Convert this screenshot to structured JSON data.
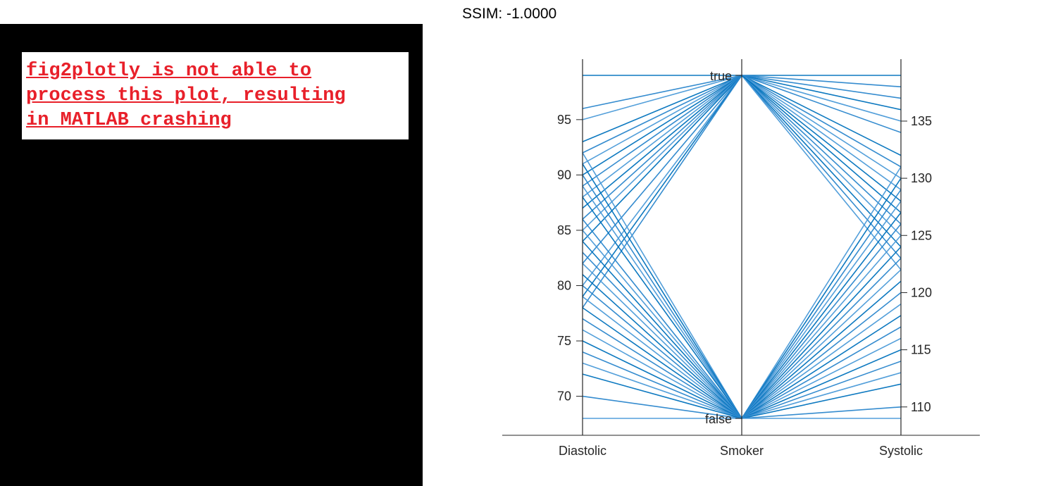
{
  "error_panel": {
    "message": "fig2plotly is not able to\nprocess this plot, resulting\nin MATLAB crashing"
  },
  "ssim_label": "SSIM: -1.0000",
  "colors": {
    "line_colors": [
      "#0072bd",
      "#2a86cc",
      "#4a9ad8"
    ],
    "axis": "#262626",
    "error_text": "#e8202a"
  },
  "chart_data": {
    "type": "parallel-coordinates",
    "axes": [
      {
        "name": "Diastolic",
        "kind": "numeric",
        "range": [
          68,
          99
        ],
        "ticks": [
          70,
          75,
          80,
          85,
          90,
          95
        ],
        "tick_side": "left"
      },
      {
        "name": "Smoker",
        "kind": "categorical",
        "categories": [
          "false",
          "true"
        ],
        "tick_side": "left"
      },
      {
        "name": "Systolic",
        "kind": "numeric",
        "range": [
          109,
          139
        ],
        "ticks": [
          110,
          115,
          120,
          125,
          130,
          135
        ],
        "tick_side": "right"
      }
    ],
    "observations": [
      [
        99,
        "true",
        139
      ],
      [
        96,
        "true",
        138
      ],
      [
        95,
        "true",
        135
      ],
      [
        93,
        "true",
        132
      ],
      [
        92,
        "true",
        131
      ],
      [
        91,
        "true",
        129
      ],
      [
        90,
        "true",
        127
      ],
      [
        89,
        "true",
        126
      ],
      [
        88,
        "true",
        125
      ],
      [
        87,
        "true",
        124
      ],
      [
        86,
        "true",
        123
      ],
      [
        85,
        "true",
        122
      ],
      [
        84,
        "true",
        136
      ],
      [
        82,
        "true",
        134
      ],
      [
        80,
        "true",
        130
      ],
      [
        79,
        "true",
        128
      ],
      [
        78,
        "true",
        137
      ],
      [
        92,
        "false",
        131
      ],
      [
        91,
        "false",
        130
      ],
      [
        90,
        "false",
        129
      ],
      [
        89,
        "false",
        128
      ],
      [
        88,
        "false",
        127
      ],
      [
        86,
        "false",
        126
      ],
      [
        85,
        "false",
        125
      ],
      [
        84,
        "false",
        124
      ],
      [
        83,
        "false",
        123
      ],
      [
        82,
        "false",
        122
      ],
      [
        81,
        "false",
        121
      ],
      [
        80,
        "false",
        120
      ],
      [
        79,
        "false",
        119
      ],
      [
        78,
        "false",
        118
      ],
      [
        77,
        "false",
        117
      ],
      [
        76,
        "false",
        116
      ],
      [
        75,
        "false",
        115
      ],
      [
        74,
        "false",
        114
      ],
      [
        73,
        "false",
        113
      ],
      [
        72,
        "false",
        112
      ],
      [
        70,
        "false",
        110
      ],
      [
        68,
        "false",
        109
      ]
    ]
  }
}
